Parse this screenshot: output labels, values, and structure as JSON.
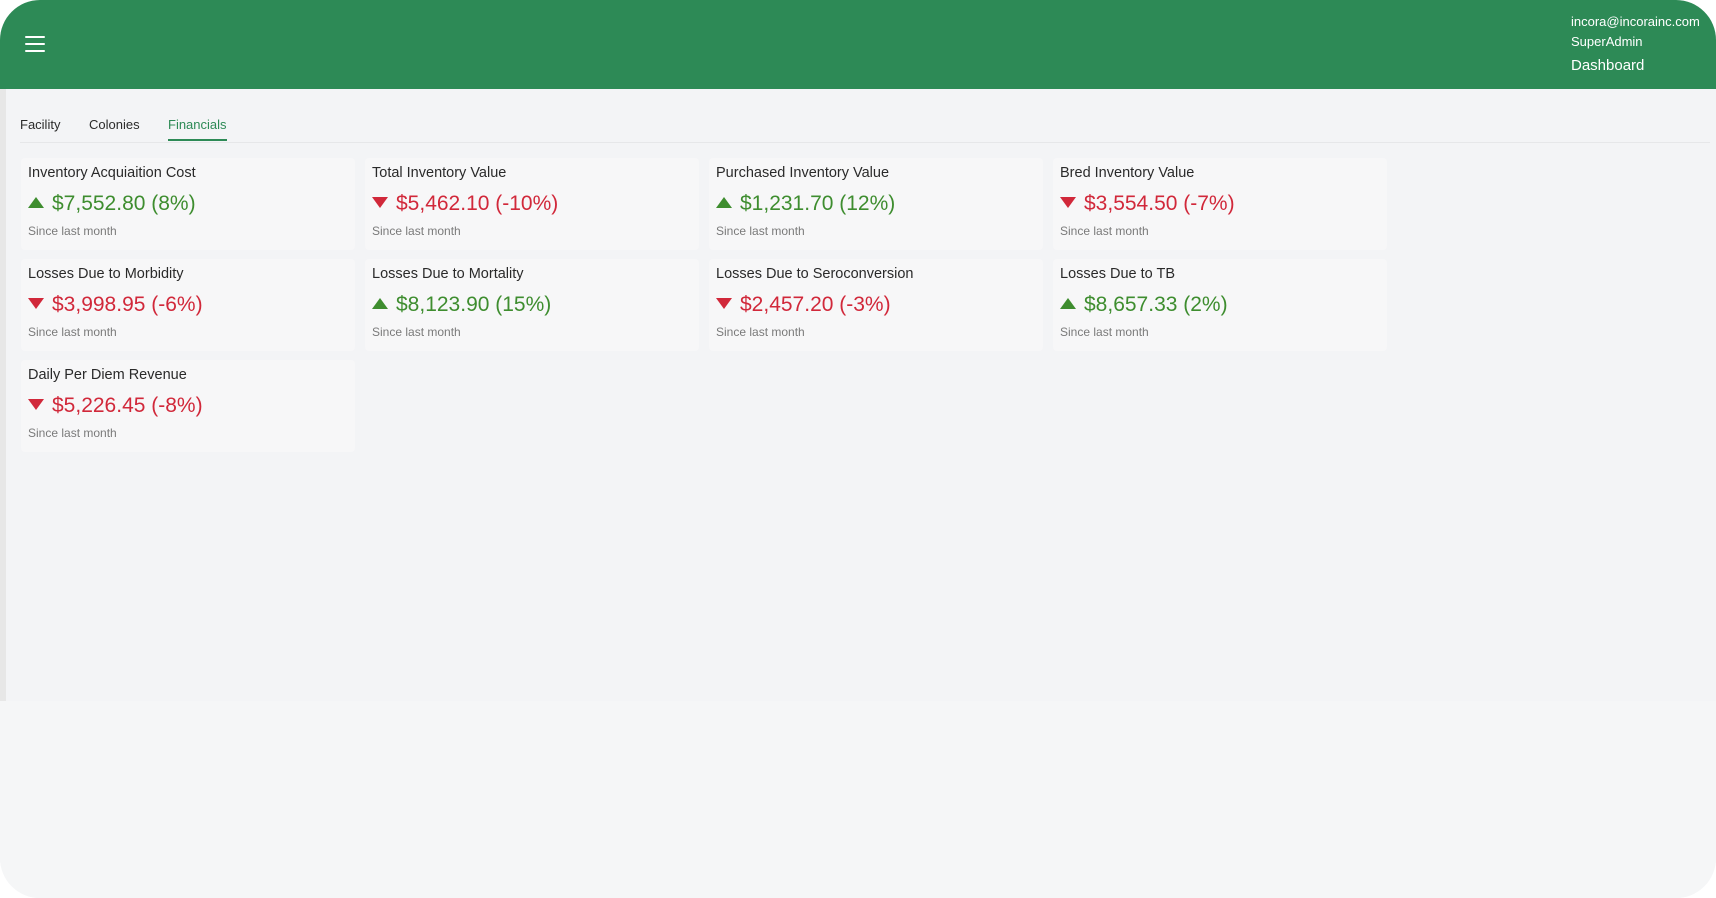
{
  "header": {
    "email": "incora@incorainc.com",
    "role": "SuperAdmin",
    "page": "Dashboard"
  },
  "tabs": [
    {
      "label": "Facility",
      "active": false
    },
    {
      "label": "Colonies",
      "active": false
    },
    {
      "label": "Financials",
      "active": true
    }
  ],
  "colors": {
    "brand": "#2d8a56",
    "up": "#3e8d2f",
    "down": "#d1283a"
  },
  "cards": [
    {
      "title": "Inventory Acquiaition Cost",
      "value": "$7,552.80 (8%)",
      "trend": "up",
      "caption": "Since last month"
    },
    {
      "title": "Total Inventory Value",
      "value": "$5,462.10 (-10%)",
      "trend": "down",
      "caption": "Since last month"
    },
    {
      "title": "Purchased Inventory Value",
      "value": "$1,231.70 (12%)",
      "trend": "up",
      "caption": "Since last month"
    },
    {
      "title": "Bred Inventory Value",
      "value": "$3,554.50 (-7%)",
      "trend": "down",
      "caption": "Since last month"
    },
    {
      "title": "Losses Due to Morbidity",
      "value": "$3,998.95 (-6%)",
      "trend": "down",
      "caption": "Since last month"
    },
    {
      "title": "Losses Due to Mortality",
      "value": "$8,123.90 (15%)",
      "trend": "up",
      "caption": "Since last month"
    },
    {
      "title": "Losses Due to Seroconversion",
      "value": "$2,457.20 (-3%)",
      "trend": "down",
      "caption": "Since last month"
    },
    {
      "title": "Losses Due to TB",
      "value": "$8,657.33 (2%)",
      "trend": "up",
      "caption": "Since last month"
    },
    {
      "title": "Daily Per Diem Revenue",
      "value": "$5,226.45 (-8%)",
      "trend": "down",
      "caption": "Since last month"
    }
  ]
}
